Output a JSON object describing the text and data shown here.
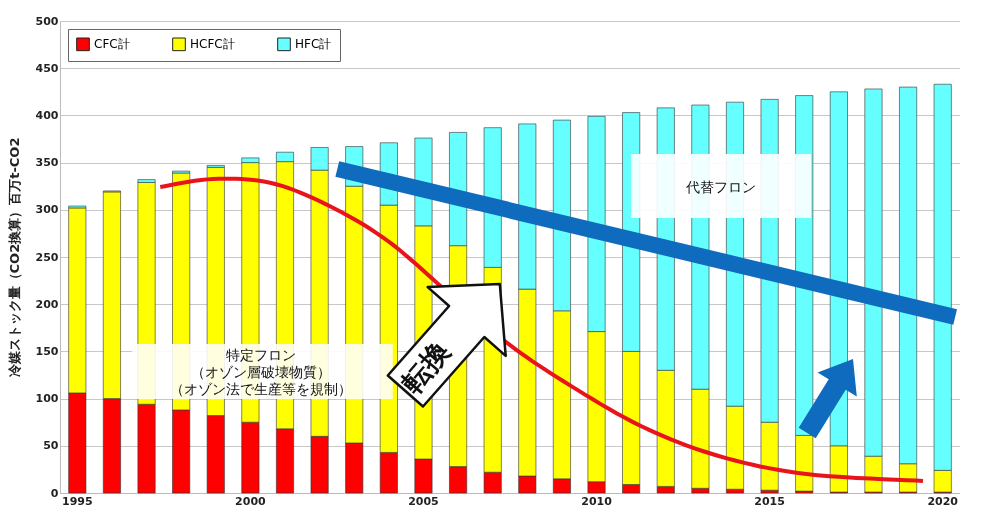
{
  "chart_data": {
    "type": "bar",
    "stacked": true,
    "categories": [
      "1995",
      null,
      null,
      null,
      null,
      "2000",
      null,
      null,
      null,
      null,
      "2005",
      null,
      null,
      null,
      null,
      "2010",
      null,
      null,
      null,
      null,
      "2015",
      null,
      null,
      null,
      null,
      "2020"
    ],
    "series": [
      {
        "name": "CFC計",
        "color": "#ff0000",
        "values": [
          106,
          100,
          94,
          88,
          82,
          75,
          68,
          60,
          53,
          43,
          36,
          28,
          22,
          18,
          15,
          12,
          9,
          7,
          5,
          4,
          3,
          2,
          1,
          1,
          1,
          1
        ]
      },
      {
        "name": "HCFC計",
        "color": "#ffff00",
        "values": [
          196,
          219,
          235,
          251,
          263,
          275,
          283,
          282,
          272,
          262,
          247,
          234,
          217,
          198,
          178,
          159,
          141,
          123,
          105,
          88,
          72,
          59,
          49,
          38,
          30,
          23
        ]
      },
      {
        "name": "HFC計",
        "color": "#66ffff",
        "values": [
          2,
          1,
          3,
          2,
          2,
          5,
          10,
          24,
          42,
          66,
          93,
          120,
          148,
          175,
          202,
          228,
          253,
          278,
          301,
          322,
          342,
          360,
          375,
          389,
          399,
          409
        ]
      }
    ],
    "ylabel": "冷媒ストック量（CO2換算）百万t-CO2",
    "ylim": [
      0,
      500
    ],
    "yticks": [
      0,
      50,
      100,
      150,
      200,
      250,
      300,
      350,
      400,
      450,
      500
    ],
    "grid": "y",
    "legend": "top left",
    "annotations": [
      "特定フロン",
      "（オゾン層破壊物質）",
      "（オゾン法で生産等を規制）",
      "代替フロン",
      "転換"
    ]
  }
}
